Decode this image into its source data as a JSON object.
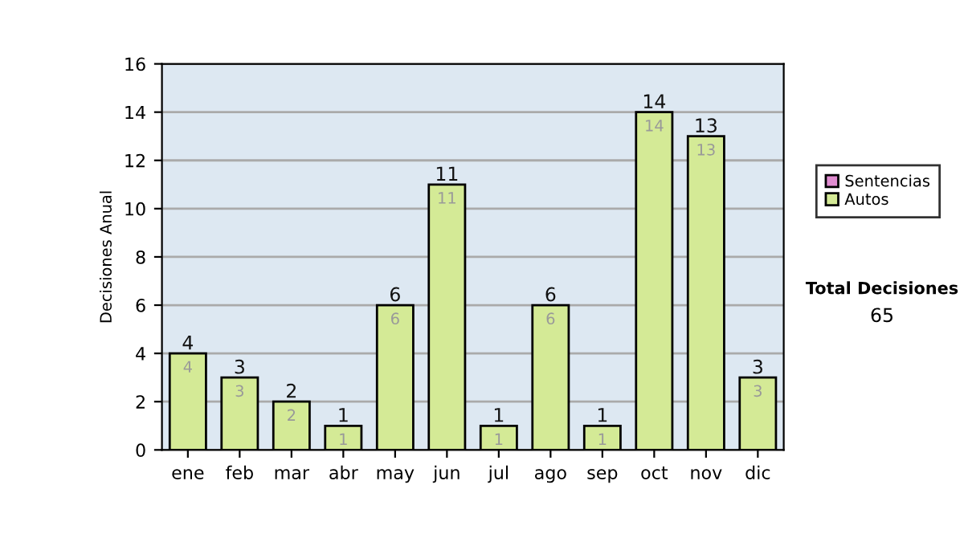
{
  "chart_data": {
    "type": "bar",
    "stacked": true,
    "ylabel": "Decisiones Anual",
    "categories": [
      "ene",
      "feb",
      "mar",
      "abr",
      "may",
      "jun",
      "jul",
      "ago",
      "sep",
      "oct",
      "nov",
      "dic"
    ],
    "series": [
      {
        "name": "Sentencias",
        "color": "#e08cd0",
        "values": [
          0,
          0,
          0,
          0,
          0,
          0,
          0,
          0,
          0,
          0,
          0,
          0
        ]
      },
      {
        "name": "Autos",
        "color": "#d4ea96",
        "values": [
          4,
          3,
          2,
          1,
          6,
          11,
          1,
          6,
          1,
          14,
          13,
          3
        ],
        "value_labels": [
          "4",
          "3",
          "2",
          "1",
          "6",
          "11",
          "1",
          "6",
          "1",
          "14",
          "13",
          "3"
        ]
      }
    ],
    "totals": [
      "4",
      "3",
      "2",
      "1",
      "6",
      "11",
      "1",
      "6",
      "1",
      "14",
      "13",
      "3"
    ],
    "ylim": [
      0,
      16
    ],
    "yticks": [
      0,
      2,
      4,
      6,
      8,
      10,
      12,
      14,
      16
    ],
    "grid": "y",
    "legend": "right",
    "annotations": [
      "Total Decisiones",
      "65"
    ]
  }
}
